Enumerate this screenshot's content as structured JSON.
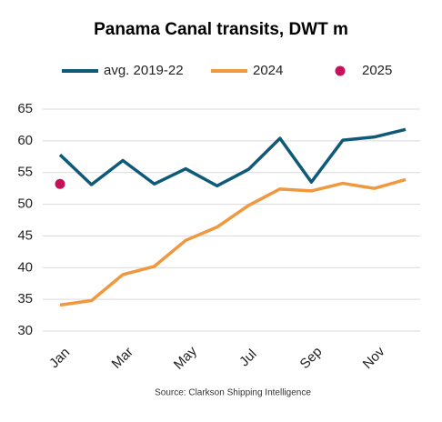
{
  "chart_data": {
    "type": "line",
    "title": "Panama Canal transits, DWT m",
    "source": "Source: Clarkson Shipping Intelligence",
    "categories": [
      "Jan",
      null,
      "Mar",
      null,
      "May",
      null,
      "Jul",
      null,
      "Sep",
      null,
      "Nov",
      null
    ],
    "series": [
      {
        "name": "avg. 2019-22",
        "color": "#0f5a78",
        "style": "line",
        "values": [
          57.8,
          53.1,
          56.9,
          53.2,
          55.6,
          52.9,
          55.5,
          60.4,
          53.5,
          60.1,
          60.6,
          61.8
        ]
      },
      {
        "name": "2024",
        "color": "#f0983e",
        "style": "line",
        "values": [
          34.1,
          34.8,
          38.9,
          40.2,
          44.3,
          46.4,
          49.8,
          52.4,
          52.1,
          53.3,
          52.5,
          53.9
        ]
      },
      {
        "name": "2025",
        "color": "#c8105a",
        "style": "marker",
        "values": [
          53.2,
          null,
          null,
          null,
          null,
          null,
          null,
          null,
          null,
          null,
          null,
          null
        ]
      }
    ],
    "ylim": [
      30,
      65
    ],
    "yticks": [
      30,
      35,
      40,
      45,
      50,
      55,
      60,
      65
    ],
    "grid": true
  }
}
